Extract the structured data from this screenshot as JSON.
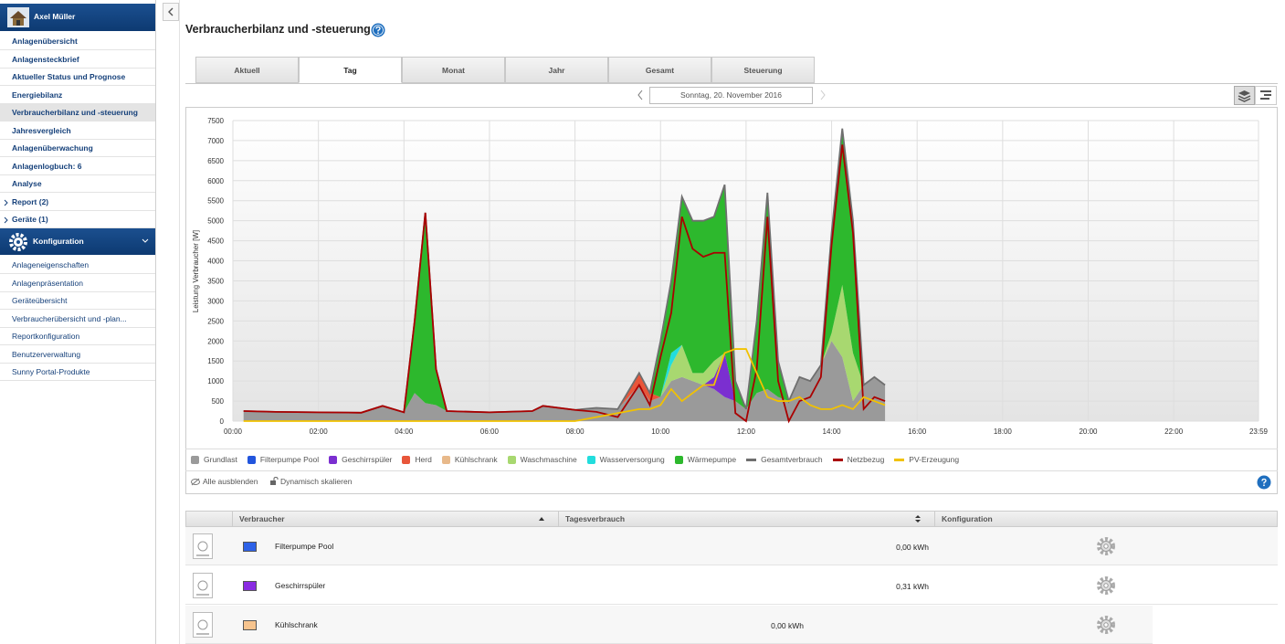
{
  "sidebar": {
    "user": "Axel Müller",
    "nav": [
      "Anlagenübersicht",
      "Anlagensteckbrief",
      "Aktueller Status und Prognose",
      "Energiebilanz",
      "Verbraucherbilanz und -steuerung",
      "Jahresvergleich",
      "Anlagenüberwachung",
      "Anlagenlogbuch: 6",
      "Analyse",
      "Report (2)",
      "Geräte (1)"
    ],
    "nav_active": 4,
    "nav_expandable": [
      9,
      10
    ],
    "section": "Konfiguration",
    "config": [
      "Anlageneigenschaften",
      "Anlagenpräsentation",
      "Geräteübersicht",
      "Verbraucherübersicht und -plan...",
      "Reportkonfiguration",
      "Benutzerverwaltung",
      "Sunny Portal-Produkte"
    ]
  },
  "header": {
    "title": "Verbraucherbilanz und -steuerung"
  },
  "tabs": {
    "items": [
      "Aktuell",
      "Tag",
      "Monat",
      "Jahr",
      "Gesamt",
      "Steuerung"
    ],
    "active": 1
  },
  "date": "Sonntag, 20. November 2016",
  "chart_data": {
    "type": "area",
    "ylabel": "Leistung Verbraucher [W]",
    "grid": true,
    "stacked": true,
    "xlim": [
      0,
      23.983
    ],
    "xticks": [
      {
        "value": 0,
        "label": "00:00"
      },
      {
        "value": 2,
        "label": "02:00"
      },
      {
        "value": 4,
        "label": "04:00"
      },
      {
        "value": 6,
        "label": "06:00"
      },
      {
        "value": 8,
        "label": "08:00"
      },
      {
        "value": 10,
        "label": "10:00"
      },
      {
        "value": 12,
        "label": "12:00"
      },
      {
        "value": 14,
        "label": "14:00"
      },
      {
        "value": 16,
        "label": "16:00"
      },
      {
        "value": 18,
        "label": "18:00"
      },
      {
        "value": 20,
        "label": "20:00"
      },
      {
        "value": 22,
        "label": "22:00"
      },
      {
        "value": 23.983,
        "label": "23:59"
      }
    ],
    "ylim": [
      0,
      7500
    ],
    "yticks": [
      0,
      500,
      1000,
      1500,
      2000,
      2500,
      3000,
      3500,
      4000,
      4500,
      5000,
      5500,
      6000,
      6500,
      7000,
      7500
    ],
    "x": [
      0.25,
      1,
      2,
      3,
      3.5,
      4,
      4.25,
      4.5,
      4.75,
      5,
      6,
      7,
      7.25,
      8,
      8.5,
      9,
      9.5,
      9.75,
      10,
      10.25,
      10.5,
      10.75,
      11,
      11.25,
      11.5,
      11.75,
      12,
      12.25,
      12.5,
      12.75,
      13,
      13.25,
      13.5,
      13.75,
      14,
      14.25,
      14.5,
      14.75,
      15,
      15.25
    ],
    "series": [
      {
        "name": "Grundlast",
        "kind": "area",
        "color": "#9a9a9a",
        "values": [
          250,
          230,
          220,
          210,
          380,
          220,
          700,
          450,
          400,
          250,
          220,
          250,
          380,
          280,
          330,
          300,
          900,
          500,
          600,
          1000,
          1100,
          1000,
          900,
          800,
          600,
          500,
          300,
          700,
          800,
          600,
          500,
          1100,
          1000,
          1400,
          2000,
          1600,
          500,
          900,
          1100,
          900
        ]
      },
      {
        "name": "Filterpumpe Pool",
        "kind": "area",
        "color": "#2255dd",
        "values": [
          0,
          0,
          0,
          0,
          0,
          0,
          0,
          0,
          0,
          0,
          0,
          0,
          0,
          0,
          0,
          0,
          0,
          0,
          0,
          0,
          0,
          0,
          0,
          0,
          0,
          0,
          0,
          0,
          0,
          0,
          0,
          0,
          0,
          0,
          0,
          0,
          0,
          0,
          0,
          0
        ]
      },
      {
        "name": "Geschirrspüler",
        "kind": "area",
        "color": "#7b2fd0",
        "values": [
          0,
          0,
          0,
          0,
          0,
          0,
          0,
          0,
          0,
          0,
          0,
          0,
          0,
          0,
          0,
          0,
          0,
          0,
          0,
          0,
          0,
          0,
          0,
          300,
          1100,
          0,
          0,
          0,
          0,
          0,
          0,
          0,
          0,
          0,
          0,
          0,
          0,
          0,
          0,
          0
        ]
      },
      {
        "name": "Herd",
        "kind": "area",
        "color": "#e8563a",
        "values": [
          0,
          0,
          0,
          0,
          0,
          0,
          0,
          0,
          0,
          0,
          0,
          0,
          0,
          0,
          0,
          0,
          300,
          200,
          0,
          0,
          0,
          0,
          0,
          0,
          0,
          0,
          0,
          0,
          0,
          0,
          0,
          0,
          0,
          0,
          0,
          0,
          0,
          0,
          0,
          0
        ]
      },
      {
        "name": "Kühlschrank",
        "kind": "area",
        "color": "#e8b98a",
        "values": [
          0,
          0,
          0,
          0,
          0,
          0,
          0,
          0,
          0,
          0,
          0,
          0,
          0,
          0,
          0,
          0,
          0,
          0,
          0,
          0,
          0,
          0,
          0,
          0,
          0,
          0,
          0,
          0,
          0,
          0,
          0,
          0,
          0,
          0,
          0,
          0,
          0,
          0,
          0,
          0
        ]
      },
      {
        "name": "Waschmaschine",
        "kind": "area",
        "color": "#a8d870",
        "values": [
          0,
          0,
          0,
          0,
          0,
          0,
          0,
          0,
          0,
          0,
          0,
          0,
          0,
          0,
          0,
          0,
          0,
          0,
          0,
          400,
          800,
          200,
          300,
          400,
          0,
          0,
          0,
          0,
          0,
          0,
          0,
          0,
          0,
          0,
          200,
          1800,
          1200,
          0,
          0,
          0
        ]
      },
      {
        "name": "Wasserversorgung",
        "kind": "area",
        "color": "#22dddd",
        "values": [
          0,
          0,
          0,
          0,
          0,
          0,
          0,
          0,
          0,
          0,
          0,
          0,
          0,
          0,
          0,
          0,
          0,
          0,
          0,
          300,
          0,
          0,
          0,
          0,
          0,
          0,
          0,
          0,
          0,
          0,
          0,
          0,
          0,
          0,
          0,
          0,
          0,
          0,
          0,
          0
        ]
      },
      {
        "name": "Wärmepumpe",
        "kind": "area",
        "color": "#2db82d",
        "values": [
          0,
          0,
          0,
          0,
          0,
          0,
          1800,
          4750,
          900,
          0,
          0,
          0,
          0,
          0,
          0,
          0,
          0,
          0,
          1400,
          1800,
          3700,
          3800,
          3800,
          3600,
          4200,
          500,
          0,
          1800,
          4900,
          900,
          0,
          0,
          0,
          0,
          2500,
          3900,
          3300,
          0,
          0,
          0
        ]
      },
      {
        "name": "Gesamtverbrauch",
        "kind": "line",
        "color": "#6f6f6f",
        "values": [
          250,
          230,
          220,
          210,
          380,
          220,
          2500,
          5200,
          1300,
          250,
          220,
          250,
          380,
          280,
          330,
          300,
          1200,
          700,
          2000,
          3500,
          5600,
          5000,
          5000,
          5100,
          5900,
          1000,
          300,
          2500,
          5700,
          1500,
          500,
          1100,
          1000,
          1400,
          4700,
          7300,
          5000,
          900,
          1100,
          900
        ]
      },
      {
        "name": "Netzbezug",
        "kind": "line",
        "color": "#aa0000",
        "values": [
          250,
          230,
          220,
          210,
          380,
          220,
          2500,
          5200,
          1300,
          250,
          220,
          250,
          380,
          280,
          230,
          100,
          900,
          400,
          1600,
          2700,
          5100,
          4300,
          4100,
          4200,
          4200,
          200,
          0,
          1300,
          5100,
          1000,
          0,
          500,
          600,
          1100,
          4400,
          6900,
          4700,
          300,
          600,
          500
        ]
      },
      {
        "name": "PV-Erzeugung",
        "kind": "line",
        "color": "#f2c200",
        "values": [
          0,
          0,
          0,
          0,
          0,
          0,
          0,
          0,
          0,
          0,
          0,
          0,
          0,
          0,
          100,
          200,
          300,
          300,
          400,
          800,
          500,
          700,
          900,
          900,
          1700,
          1800,
          1800,
          1200,
          600,
          500,
          500,
          600,
          400,
          300,
          300,
          400,
          300,
          600,
          500,
          400
        ]
      }
    ]
  },
  "chart_controls": [
    "Alle ausblenden",
    "Dynamisch skalieren"
  ],
  "table": {
    "columns": [
      "Verbraucher",
      "Tagesverbrauch",
      "Konfiguration"
    ],
    "rows": [
      {
        "name": "Filterpumpe Pool",
        "color": "#2e62e8",
        "consumption": "0,00 kWh"
      },
      {
        "name": "Geschirrspüler",
        "color": "#8a2be2",
        "consumption": "0,31 kWh"
      },
      {
        "name": "Kühlschrank",
        "color": "#f7c48e",
        "consumption": "0,00 kWh"
      }
    ]
  }
}
